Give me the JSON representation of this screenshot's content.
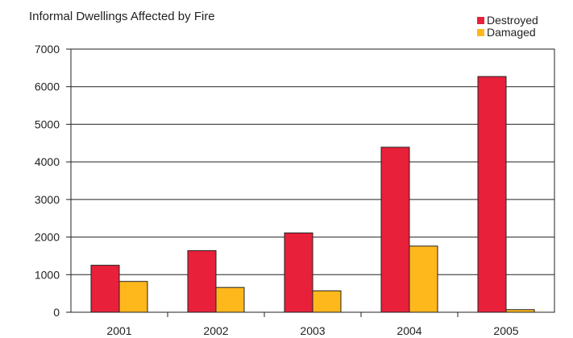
{
  "chart_data": {
    "type": "bar",
    "title": "Informal Dwellings Affected by Fire",
    "xlabel": "",
    "ylabel": "",
    "categories": [
      "2001",
      "2002",
      "2003",
      "2004",
      "2005"
    ],
    "series": [
      {
        "name": "Destroyed",
        "color": "#e8203a",
        "values": [
          1250,
          1640,
          2110,
          4390,
          6270
        ]
      },
      {
        "name": "Damaged",
        "color": "#ffb81c",
        "values": [
          820,
          660,
          570,
          1760,
          70
        ]
      }
    ],
    "ylim": [
      0,
      7000
    ],
    "yticks": [
      "0",
      "1000",
      "2000",
      "3000",
      "4000",
      "5000",
      "6000",
      "7000"
    ],
    "grid": true,
    "legend_position": "top-right"
  }
}
